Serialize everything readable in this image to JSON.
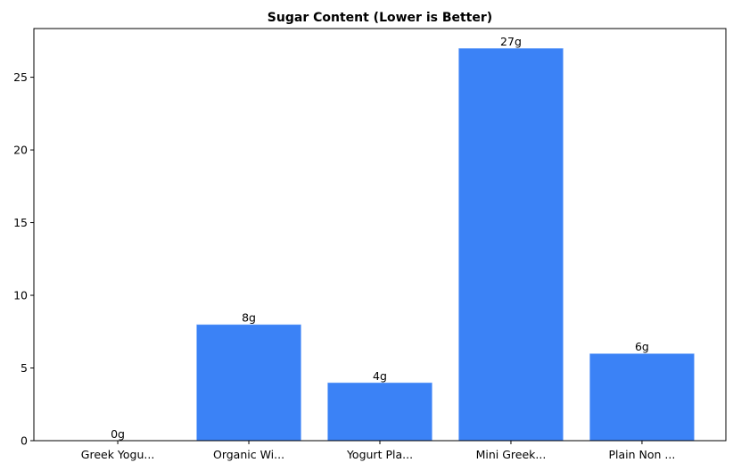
{
  "chart_data": {
    "type": "bar",
    "title": "Sugar Content (Lower is Better)",
    "xlabel": "",
    "ylabel": "",
    "categories": [
      "Greek Yogu...",
      "Organic Wi...",
      "Yogurt Pla...",
      "Mini Greek...",
      "Plain Non ..."
    ],
    "values": [
      0,
      8,
      4,
      27,
      6
    ],
    "data_labels": [
      "0g",
      "8g",
      "4g",
      "27g",
      "6g"
    ],
    "ylim": [
      0,
      28.35
    ],
    "yticks": [
      0,
      5,
      10,
      15,
      20,
      25
    ],
    "grid": false,
    "bar_color": "#3b82f6"
  }
}
